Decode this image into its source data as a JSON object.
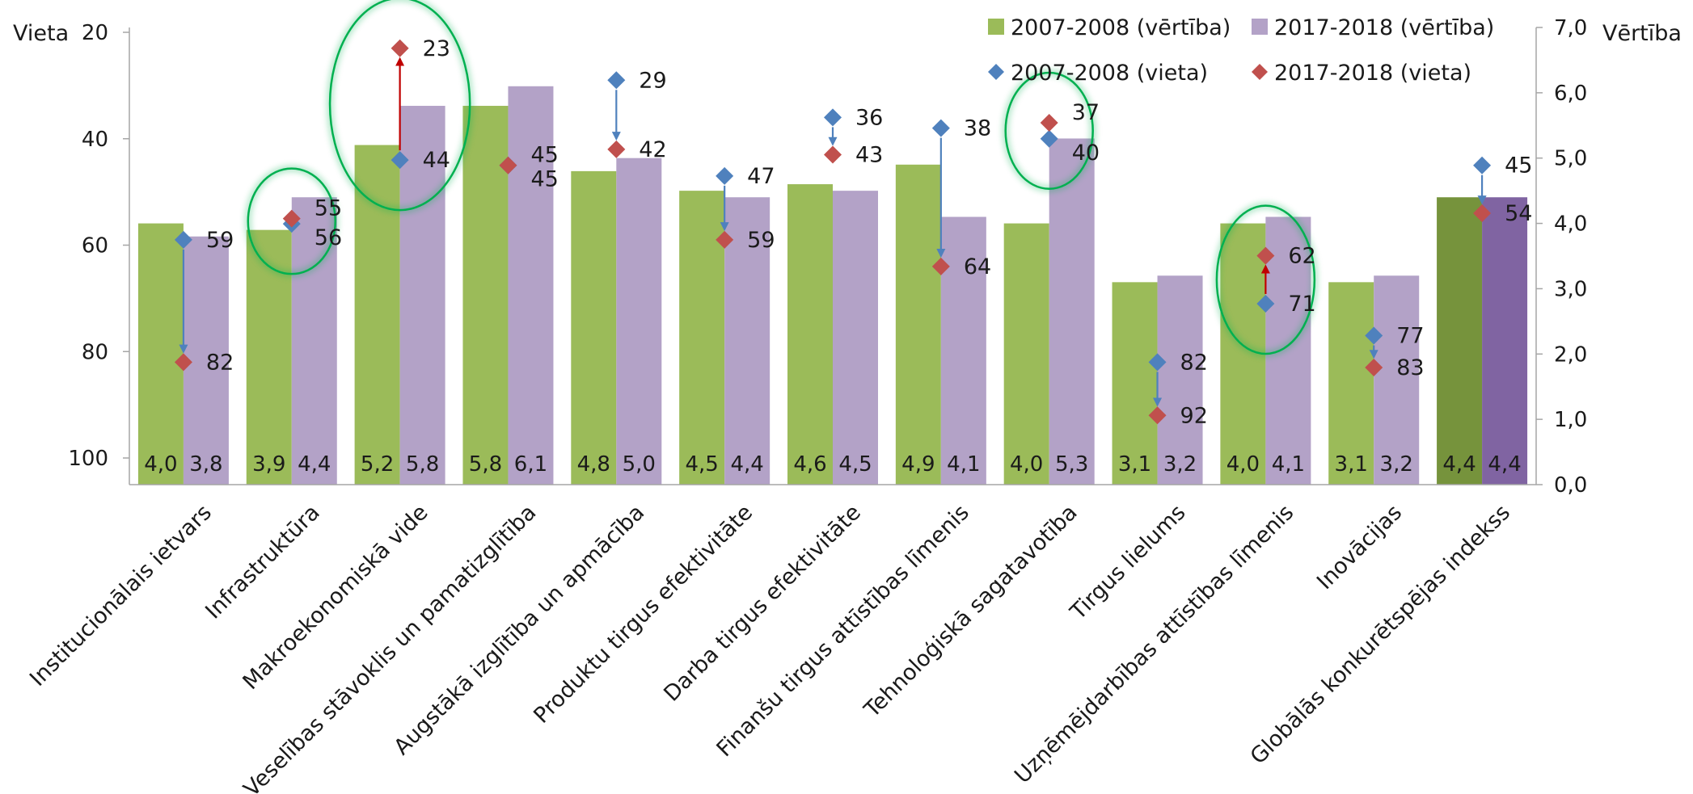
{
  "chart_data": {
    "type": "bar",
    "left_axis": {
      "title": "Vieta",
      "range": [
        20,
        100
      ],
      "reversed": true,
      "ticks": [
        20,
        40,
        60,
        80,
        100
      ]
    },
    "right_axis": {
      "title": "Vērtība",
      "range": [
        0,
        7
      ],
      "ticks": [
        "0,0",
        "1,0",
        "2,0",
        "3,0",
        "4,0",
        "5,0",
        "6,0",
        "7,0"
      ]
    },
    "categories": [
      "Institucionālais ietvars",
      "Infrastruktūra",
      "Makroekonomiskā vide",
      "Veselības stāvoklis un pamatizglītība",
      "Augstākā izglītība un apmācība",
      "Produktu tirgus efektivitāte",
      "Darba tirgus efektivitāte",
      "Finanšu tirgus attīstības līmenis",
      "Tehnoloģiskā sagatavotība",
      "Tirgus lielums",
      "Uzņēmējdarbības attīstības līmenis",
      "Inovācijas",
      "Globālās konkurētspējas indekss"
    ],
    "series": [
      {
        "name": "2007-2008 (vērtība)",
        "kind": "bar",
        "axis": "right",
        "color": "#9bbb59",
        "values": [
          4.0,
          3.9,
          5.2,
          5.8,
          4.8,
          4.5,
          4.6,
          4.9,
          4.0,
          3.1,
          4.0,
          3.1,
          4.4
        ],
        "labels": [
          "4,0",
          "3,9",
          "5,2",
          "5,8",
          "4,8",
          "4,5",
          "4,6",
          "4,9",
          "4,0",
          "3,1",
          "4,0",
          "3,1",
          "4,4"
        ]
      },
      {
        "name": "2017-2018 (vērtība)",
        "kind": "bar",
        "axis": "right",
        "color": "#b3a2c7",
        "values": [
          3.8,
          4.4,
          5.8,
          6.1,
          5.0,
          4.4,
          4.5,
          4.1,
          5.3,
          3.2,
          4.1,
          3.2,
          4.4
        ],
        "labels": [
          "3,8",
          "4,4",
          "5,8",
          "6,1",
          "5,0",
          "4,4",
          "4,5",
          "4,1",
          "5,3",
          "3,2",
          "4,1",
          "3,2",
          "4,4"
        ]
      },
      {
        "name": "2007-2008 (vieta)",
        "kind": "marker",
        "axis": "left",
        "color": "#4f81bd",
        "values": [
          59,
          56,
          44,
          45,
          29,
          47,
          36,
          38,
          40,
          82,
          71,
          77,
          45
        ]
      },
      {
        "name": "2017-2018 (vieta)",
        "kind": "marker",
        "axis": "left",
        "color": "#c0504d",
        "values": [
          82,
          55,
          23,
          45,
          42,
          59,
          43,
          64,
          37,
          92,
          62,
          83,
          54
        ]
      }
    ],
    "highlight_colors": {
      "total_bar_2007": "#76933c",
      "total_bar_2017": "#8064a2",
      "improve_arrow": "#c00000",
      "worsen_arrow": "#4f81bd",
      "ellipse": "#00b050"
    },
    "highlighted_categories": [
      "Infrastruktūra",
      "Makroekonomiskā vide",
      "Tehnoloģiskā sagatavotība",
      "Uzņēmējdarbības attīstības līmenis"
    ],
    "legend": {
      "position": "top-right"
    },
    "grid": false
  }
}
